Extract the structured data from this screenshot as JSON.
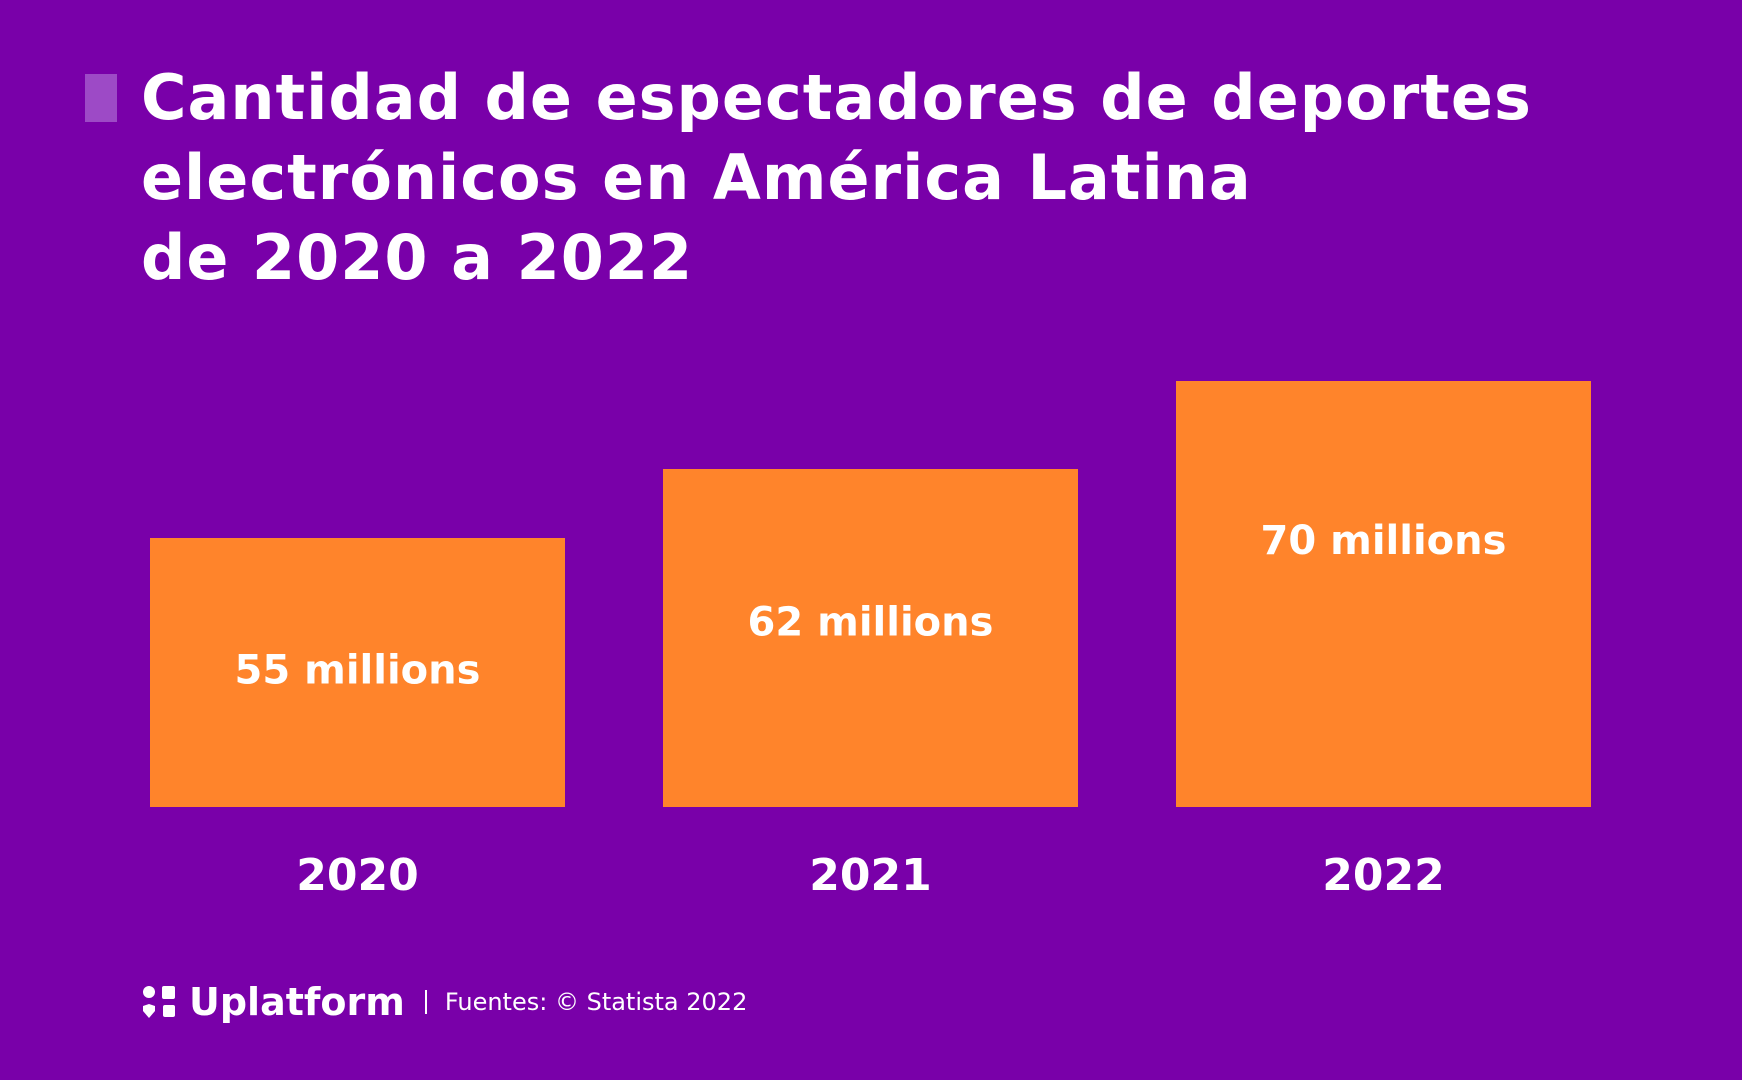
{
  "title": {
    "lines": [
      "Cantidad de espectadores de deportes",
      "electrónicos en América Latina",
      "de 2020 a 2022"
    ]
  },
  "colors": {
    "background": "#7900a9",
    "bar": "#ff842b",
    "text": "#ffffff",
    "marker": "#9d4ac6"
  },
  "chart_data": {
    "type": "bar",
    "title": "Cantidad de espectadores de deportes electrónicos en América Latina de 2020 a 2022",
    "categories": [
      "2020",
      "2021",
      "2022"
    ],
    "values": [
      55,
      62,
      70
    ],
    "unit": "millions",
    "data_labels": [
      "55 millions",
      "62 millions",
      "70 millions"
    ],
    "xlabel": "",
    "ylabel": "",
    "grid": false,
    "legend": "none"
  },
  "footer": {
    "logo_icon": "uplatform-logo-icon",
    "brand": "Uplatform",
    "source": "Fuentes: © Statista 2022"
  }
}
